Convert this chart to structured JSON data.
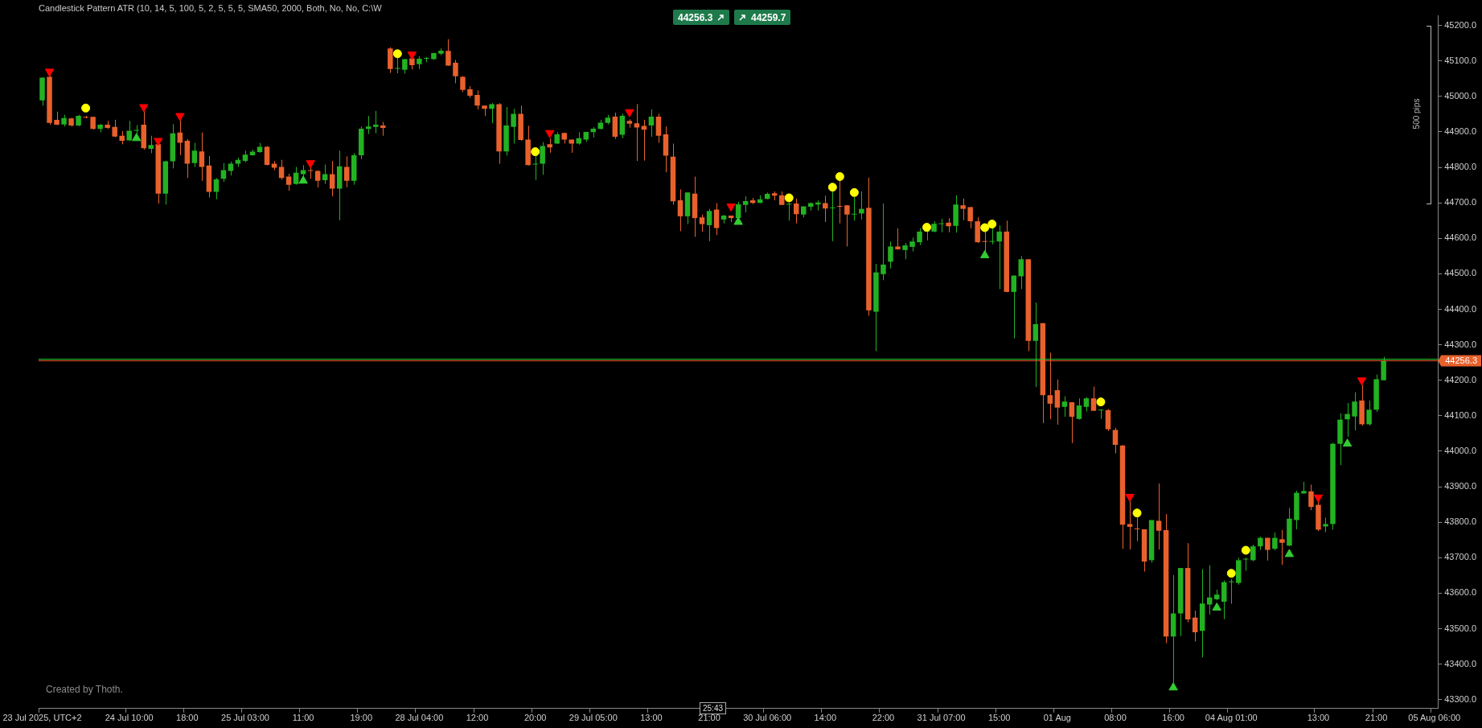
{
  "chart_data": {
    "type": "candlestick",
    "title": "Candlestick Pattern ATR (10, 14, 5, 100, 5, 2, 5, 5, 5, SMA50, 2000, Both, No, No, C:\\W",
    "categories": [
      "23 Jul 2025, UTC+2",
      null,
      null,
      null,
      null,
      null,
      null,
      null,
      null,
      null,
      null,
      null,
      "24 Jul 10:00",
      null,
      null,
      null,
      null,
      null,
      null,
      null,
      "18:00",
      null,
      null,
      null,
      null,
      null,
      null,
      null,
      "25 Jul 03:00",
      null,
      null,
      null,
      null,
      null,
      null,
      null,
      "11:00",
      null,
      null,
      null,
      null,
      null,
      null,
      null,
      "19:00",
      null,
      null,
      null,
      null,
      null,
      null,
      null,
      "28 Jul 04:00",
      null,
      null,
      null,
      null,
      null,
      null,
      null,
      "12:00",
      null,
      null,
      null,
      null,
      null,
      null,
      null,
      "20:00",
      null,
      null,
      null,
      null,
      null,
      null,
      null,
      "29 Jul 05:00",
      null,
      null,
      null,
      null,
      null,
      null,
      null,
      "13:00",
      null,
      null,
      null,
      null,
      null,
      null,
      null,
      "21:00",
      null,
      null,
      null,
      null,
      null,
      null,
      null,
      "30 Jul 06:00",
      null,
      null,
      null,
      null,
      null,
      null,
      null,
      "14:00",
      null,
      null,
      null,
      null,
      null,
      null,
      null,
      "22:00",
      null,
      null,
      null,
      null,
      null,
      null,
      null,
      "31 Jul 07:00",
      null,
      null,
      null,
      null,
      null,
      null,
      null,
      "15:00",
      null,
      null,
      null,
      null,
      null,
      null,
      null,
      "01 Aug",
      null,
      null,
      null,
      null,
      null,
      null,
      null,
      "08:00",
      null,
      null,
      null,
      null,
      null,
      null,
      null,
      "16:00",
      null,
      null,
      null,
      null,
      null,
      null,
      null,
      "04 Aug 01:00",
      null,
      null,
      null,
      null,
      null,
      null,
      null,
      null,
      null,
      null,
      null,
      "13:00",
      null,
      null,
      null,
      null,
      null,
      null,
      null,
      "21:00",
      null,
      null,
      null,
      null,
      null,
      null,
      null,
      "05 Aug 06:00"
    ],
    "ohlc": [
      [
        44989,
        45053,
        44974,
        45053
      ],
      [
        45055,
        45060,
        44920,
        44925
      ],
      [
        44934,
        44957,
        44919,
        44920
      ],
      [
        44921,
        44948,
        44915,
        44939
      ],
      [
        44938,
        44940,
        44915,
        44918
      ],
      [
        44918,
        44948,
        44916,
        44945
      ],
      [
        44941,
        44945,
        44938,
        44940
      ],
      [
        44942,
        44942,
        44906,
        44908
      ],
      [
        44908,
        44922,
        44899,
        44920
      ],
      [
        44920,
        44931,
        44908,
        44911
      ],
      [
        44914,
        44934,
        44885,
        44887
      ],
      [
        44889,
        44902,
        44865,
        44875
      ],
      [
        44876,
        44931,
        44874,
        44903
      ],
      [
        44903,
        44919,
        44895,
        44904
      ],
      [
        44920,
        44959,
        44850,
        44854
      ],
      [
        44852,
        44889,
        44840,
        44863
      ],
      [
        44865,
        44868,
        44698,
        44726
      ],
      [
        44726,
        44819,
        44695,
        44817
      ],
      [
        44817,
        44922,
        44797,
        44896
      ],
      [
        44898,
        44933,
        44834,
        44869
      ],
      [
        44875,
        44880,
        44770,
        44810
      ],
      [
        44812,
        44869,
        44801,
        44847
      ],
      [
        44845,
        44898,
        44762,
        44801
      ],
      [
        44805,
        44832,
        44715,
        44731
      ],
      [
        44731,
        44770,
        44710,
        44766
      ],
      [
        44768,
        44812,
        44759,
        44792
      ],
      [
        44790,
        44816,
        44777,
        44810
      ],
      [
        44810,
        44827,
        44801,
        44821
      ],
      [
        44818,
        44847,
        44814,
        44836
      ],
      [
        44834,
        44850,
        44833,
        44844
      ],
      [
        44843,
        44869,
        44841,
        44858
      ],
      [
        44858,
        44860,
        44805,
        44807
      ],
      [
        44810,
        44818,
        44792,
        44799
      ],
      [
        44801,
        44821,
        44765,
        44770
      ],
      [
        44774,
        44782,
        44734,
        44751
      ],
      [
        44753,
        44801,
        44751,
        44785
      ],
      [
        44781,
        44806,
        44775,
        44792
      ],
      [
        44791,
        44800,
        44768,
        44790
      ],
      [
        44790,
        44792,
        44743,
        44762
      ],
      [
        44764,
        44808,
        44753,
        44781
      ],
      [
        44781,
        44818,
        44718,
        44740
      ],
      [
        44740,
        44847,
        44651,
        44803
      ],
      [
        44801,
        44831,
        44744,
        44762
      ],
      [
        44762,
        44840,
        44751,
        44834
      ],
      [
        44834,
        44915,
        44823,
        44909
      ],
      [
        44908,
        44945,
        44894,
        44915
      ],
      [
        44914,
        44959,
        44896,
        44920
      ],
      [
        44918,
        44928,
        44889,
        44911
      ],
      [
        45135,
        45138,
        45066,
        45077
      ],
      [
        45078,
        45110,
        45065,
        45079
      ],
      [
        45075,
        45105,
        45064,
        45105
      ],
      [
        45107,
        45110,
        45076,
        45088
      ],
      [
        45091,
        45113,
        45077,
        45106
      ],
      [
        45106,
        45111,
        45096,
        45107
      ],
      [
        45105,
        45123,
        45103,
        45122
      ],
      [
        45120,
        45135,
        45116,
        45129
      ],
      [
        45128,
        45161,
        45086,
        45087
      ],
      [
        45095,
        45103,
        45037,
        45057
      ],
      [
        45055,
        45057,
        45012,
        45018
      ],
      [
        45020,
        45029,
        44996,
        45002
      ],
      [
        45004,
        45017,
        44963,
        44974
      ],
      [
        44974,
        44974,
        44945,
        44965
      ],
      [
        44965,
        44981,
        44924,
        44978
      ],
      [
        44978,
        44981,
        44810,
        44845
      ],
      [
        44845,
        44970,
        44833,
        44918
      ],
      [
        44914,
        44965,
        44867,
        44951
      ],
      [
        44951,
        44974,
        44875,
        44877
      ],
      [
        44878,
        44917,
        44805,
        44806
      ],
      [
        44808,
        44838,
        44764,
        44809
      ],
      [
        44810,
        44871,
        44779,
        44860
      ],
      [
        44865,
        44882,
        44841,
        44856
      ],
      [
        44867,
        44899,
        44866,
        44893
      ],
      [
        44897,
        44897,
        44867,
        44878
      ],
      [
        44878,
        44878,
        44841,
        44867
      ],
      [
        44867,
        44899,
        44864,
        44882
      ],
      [
        44878,
        44900,
        44872,
        44900
      ],
      [
        44899,
        44913,
        44884,
        44909
      ],
      [
        44908,
        44934,
        44907,
        44926
      ],
      [
        44925,
        44948,
        44921,
        44940
      ],
      [
        44943,
        44954,
        44880,
        44886
      ],
      [
        44892,
        44951,
        44882,
        44945
      ],
      [
        44931,
        44935,
        44912,
        44923
      ],
      [
        44924,
        44978,
        44818,
        44912
      ],
      [
        44917,
        44934,
        44819,
        44906
      ],
      [
        44918,
        44963,
        44886,
        44943
      ],
      [
        44943,
        44951,
        44869,
        44889
      ],
      [
        44893,
        44915,
        44786,
        44833
      ],
      [
        44830,
        44867,
        44695,
        44704
      ],
      [
        44707,
        44738,
        44620,
        44662
      ],
      [
        44662,
        44729,
        44640,
        44729
      ],
      [
        44726,
        44774,
        44604,
        44657
      ],
      [
        44659,
        44667,
        44619,
        44640
      ],
      [
        44637,
        44683,
        44592,
        44677
      ],
      [
        44681,
        44699,
        44609,
        44629
      ],
      [
        44653,
        44666,
        44642,
        44664
      ],
      [
        44664,
        44664,
        44646,
        44657
      ],
      [
        44657,
        44703,
        44657,
        44696
      ],
      [
        44694,
        44718,
        44673,
        44705
      ],
      [
        44707,
        44714,
        44696,
        44700
      ],
      [
        44700,
        44721,
        44699,
        44710
      ],
      [
        44711,
        44729,
        44710,
        44725
      ],
      [
        44727,
        44732,
        44707,
        44720
      ],
      [
        44721,
        44732,
        44694,
        44694
      ],
      [
        44695,
        44700,
        44650,
        44696
      ],
      [
        44698,
        44712,
        44642,
        44668
      ],
      [
        44667,
        44690,
        44659,
        44690
      ],
      [
        44689,
        44701,
        44678,
        44699
      ],
      [
        44695,
        44707,
        44678,
        44701
      ],
      [
        44699,
        44720,
        44646,
        44684
      ],
      [
        44685,
        44732,
        44592,
        44686
      ],
      [
        44690,
        44764,
        44642,
        44689
      ],
      [
        44693,
        44693,
        44577,
        44667
      ],
      [
        44667,
        44716,
        44650,
        44668
      ],
      [
        44670,
        44732,
        44653,
        44683
      ],
      [
        44686,
        44771,
        44382,
        44397
      ],
      [
        44393,
        44528,
        44282,
        44504
      ],
      [
        44499,
        44698,
        44482,
        44526
      ],
      [
        44534,
        44591,
        44515,
        44577
      ],
      [
        44577,
        44628,
        44568,
        44569
      ],
      [
        44567,
        44587,
        44541,
        44580
      ],
      [
        44576,
        44602,
        44563,
        44591
      ],
      [
        44589,
        44628,
        44581,
        44619
      ],
      [
        44619,
        44621,
        44594,
        44620
      ],
      [
        44619,
        44648,
        44617,
        44641
      ],
      [
        44640,
        44655,
        44617,
        44641
      ],
      [
        44644,
        44657,
        44617,
        44634
      ],
      [
        44635,
        44721,
        44616,
        44695
      ],
      [
        44693,
        44712,
        44651,
        44683
      ],
      [
        44688,
        44688,
        44628,
        44648
      ],
      [
        44648,
        44659,
        44587,
        44589
      ],
      [
        44591,
        44620,
        44561,
        44590
      ],
      [
        44590,
        44631,
        44583,
        44591
      ],
      [
        44591,
        44636,
        44457,
        44619
      ],
      [
        44619,
        44650,
        44448,
        44449
      ],
      [
        44449,
        44495,
        44318,
        44495
      ],
      [
        44493,
        44550,
        44457,
        44541
      ],
      [
        44541,
        44541,
        44282,
        44311
      ],
      [
        44311,
        44419,
        44181,
        44358
      ],
      [
        44361,
        44361,
        44079,
        44158
      ],
      [
        44158,
        44278,
        44090,
        44134
      ],
      [
        44172,
        44202,
        44075,
        44123
      ],
      [
        44125,
        44155,
        44097,
        44140
      ],
      [
        44138,
        44138,
        44023,
        44097
      ],
      [
        44091,
        44149,
        44089,
        44129
      ],
      [
        44125,
        44152,
        44112,
        44149
      ],
      [
        44149,
        44182,
        44114,
        44114
      ],
      [
        44115,
        44118,
        44091,
        44116
      ],
      [
        44116,
        44119,
        44057,
        44062
      ],
      [
        44060,
        44066,
        43994,
        44018
      ],
      [
        44016,
        44018,
        43725,
        43793
      ],
      [
        43795,
        43861,
        43723,
        43787
      ],
      [
        43781,
        43813,
        43747,
        43780
      ],
      [
        43780,
        43780,
        43661,
        43689
      ],
      [
        43693,
        43806,
        43686,
        43806
      ],
      [
        43804,
        43909,
        43723,
        43776
      ],
      [
        43778,
        43823,
        43459,
        43478
      ],
      [
        43478,
        43651,
        43341,
        43543
      ],
      [
        43543,
        43671,
        43479,
        43671
      ],
      [
        43671,
        43741,
        43518,
        43526
      ],
      [
        43531,
        43551,
        43464,
        43490
      ],
      [
        43494,
        43668,
        43419,
        43571
      ],
      [
        43568,
        43679,
        43540,
        43588
      ],
      [
        43583,
        43610,
        43580,
        43596
      ],
      [
        43576,
        43636,
        43527,
        43631
      ],
      [
        43631,
        43640,
        43570,
        43632
      ],
      [
        43629,
        43700,
        43624,
        43693
      ],
      [
        43695,
        43700,
        43663,
        43696
      ],
      [
        43693,
        43737,
        43690,
        43732
      ],
      [
        43732,
        43759,
        43722,
        43756
      ],
      [
        43756,
        43756,
        43692,
        43722
      ],
      [
        43725,
        43771,
        43721,
        43756
      ],
      [
        43752,
        43778,
        43680,
        43742
      ],
      [
        43734,
        43840,
        43733,
        43810
      ],
      [
        43806,
        43889,
        43780,
        43883
      ],
      [
        43881,
        43914,
        43881,
        43888
      ],
      [
        43887,
        43906,
        43834,
        43843
      ],
      [
        43849,
        43859,
        43775,
        43779
      ],
      [
        43788,
        43813,
        43772,
        43795
      ],
      [
        43795,
        44024,
        43779,
        44021
      ],
      [
        44021,
        44107,
        43961,
        44089
      ],
      [
        44090,
        44136,
        44041,
        44105
      ],
      [
        44098,
        44166,
        44059,
        44140
      ],
      [
        44143,
        44187,
        44072,
        44076
      ],
      [
        44076,
        44143,
        44072,
        44117
      ],
      [
        44117,
        44216,
        44111,
        44203
      ],
      [
        44200,
        44266,
        44200,
        44256.3
      ],
      null,
      null,
      null,
      null,
      null,
      null,
      null
    ],
    "colors": [
      "#22b222",
      "#e8612c",
      "#e8612c",
      "#22b222",
      "#e8612c",
      "#22b222",
      "#e8612c",
      "#e8612c",
      "#22b222",
      "#e8612c",
      "#e8612c",
      "#e8612c",
      "#22b222",
      "#22b222",
      "#e8612c",
      "#22b222",
      "#e8612c",
      "#22b222",
      "#22b222",
      "#e8612c",
      "#e8612c",
      "#22b222",
      "#e8612c",
      "#e8612c",
      "#22b222",
      "#22b222",
      "#22b222",
      "#22b222",
      "#22b222",
      "#22b222",
      "#22b222",
      "#e8612c",
      "#e8612c",
      "#e8612c",
      "#e8612c",
      "#22b222",
      "#22b222",
      "#e8612c",
      "#e8612c",
      "#22b222",
      "#e8612c",
      "#22b222",
      "#e8612c",
      "#22b222",
      "#22b222",
      "#22b222",
      "#22b222",
      "#e8612c",
      "#e8612c",
      "#22b222",
      "#22b222",
      "#e8612c",
      "#22b222",
      "#22b222",
      "#22b222",
      "#22b222",
      "#e8612c",
      "#e8612c",
      "#e8612c",
      "#e8612c",
      "#e8612c",
      "#e8612c",
      "#22b222",
      "#e8612c",
      "#22b222",
      "#22b222",
      "#e8612c",
      "#e8612c",
      "#22b222",
      "#22b222",
      "#e8612c",
      "#22b222",
      "#e8612c",
      "#e8612c",
      "#22b222",
      "#22b222",
      "#22b222",
      "#22b222",
      "#22b222",
      "#e8612c",
      "#22b222",
      "#e8612c",
      "#e8612c",
      "#e8612c",
      "#22b222",
      "#e8612c",
      "#e8612c",
      "#e8612c",
      "#e8612c",
      "#22b222",
      "#e8612c",
      "#e8612c",
      "#22b222",
      "#e8612c",
      "#22b222",
      "#e8612c",
      "#22b222",
      "#22b222",
      "#e8612c",
      "#22b222",
      "#22b222",
      "#e8612c",
      "#e8612c",
      "#22b222",
      "#e8612c",
      "#22b222",
      "#22b222",
      "#22b222",
      "#e8612c",
      "#22b222",
      "#e8612c",
      "#e8612c",
      "#22b222",
      "#22b222",
      "#e8612c",
      "#22b222",
      "#22b222",
      "#22b222",
      "#e8612c",
      "#22b222",
      "#22b222",
      "#22b222",
      "#22b222",
      "#22b222",
      "#22b222",
      "#e8612c",
      "#22b222",
      "#e8612c",
      "#e8612c",
      "#e8612c",
      "#e8612c",
      "#22b222",
      "#22b222",
      "#e8612c",
      "#22b222",
      "#22b222",
      "#e8612c",
      "#22b222",
      "#e8612c",
      "#e8612c",
      "#e8612c",
      "#22b222",
      "#e8612c",
      "#22b222",
      "#22b222",
      "#e8612c",
      "#22b222",
      "#e8612c",
      "#e8612c",
      "#e8612c",
      "#e8612c",
      "#e8612c",
      "#e8612c",
      "#22b222",
      "#e8612c",
      "#e8612c",
      "#22b222",
      "#22b222",
      "#e8612c",
      "#e8612c",
      "#22b222",
      "#22b222",
      "#22b222",
      "#22b222",
      "#22b222",
      "#22b222",
      "#22b222",
      "#22b222",
      "#22b222",
      "#e8612c",
      "#22b222",
      "#e8612c",
      "#22b222",
      "#22b222",
      "#22b222",
      "#e8612c",
      "#e8612c",
      "#22b222",
      "#22b222",
      "#22b222",
      "#22b222",
      "#22b222",
      "#e8612c",
      "#22b222",
      "#22b222",
      "#22b222",
      null,
      null,
      null,
      null,
      null,
      null,
      null
    ],
    "series": [
      {
        "type": "scatter",
        "marker": "triangle",
        "color": "#ff0000",
        "values": [
          null,
          45070,
          null,
          null,
          null,
          null,
          null,
          null,
          null,
          null,
          null,
          null,
          null,
          null,
          44970,
          null,
          44875,
          null,
          null,
          44945,
          null,
          null,
          null,
          null,
          null,
          null,
          null,
          null,
          null,
          null,
          null,
          null,
          null,
          null,
          null,
          null,
          null,
          44812,
          null,
          null,
          null,
          null,
          null,
          null,
          null,
          null,
          null,
          null,
          null,
          null,
          null,
          45118,
          null,
          null,
          null,
          null,
          null,
          null,
          null,
          null,
          null,
          null,
          null,
          null,
          null,
          null,
          null,
          null,
          null,
          null,
          44897,
          null,
          null,
          null,
          null,
          null,
          null,
          null,
          null,
          null,
          null,
          44956,
          null,
          null,
          null,
          null,
          null,
          null,
          null,
          null,
          null,
          null,
          null,
          null,
          null,
          44690,
          null,
          null,
          null,
          null,
          null,
          null,
          null,
          null,
          null,
          null,
          null,
          null,
          null,
          null,
          null,
          null,
          null,
          null,
          null,
          null,
          null,
          null,
          null,
          null,
          null,
          null,
          null,
          null,
          null,
          null,
          null,
          null,
          null,
          null,
          null,
          null,
          null,
          null,
          null,
          null,
          null,
          null,
          null,
          null,
          null,
          null,
          null,
          null,
          null,
          null,
          null,
          null,
          null,
          null,
          43872,
          null,
          null,
          null,
          null,
          null,
          null,
          null,
          null,
          null,
          null,
          null,
          null,
          null,
          null,
          null,
          null,
          null,
          null,
          null,
          null,
          null,
          null,
          null,
          null,
          null,
          43870,
          null,
          null,
          null,
          null,
          null,
          44200,
          null,
          null,
          null,
          null,
          null,
          null,
          null,
          null,
          null,
          null
        ]
      },
      {
        "type": "scatter",
        "marker": "triangle",
        "color": "#33cc33",
        "values": [
          null,
          null,
          null,
          null,
          null,
          null,
          null,
          null,
          null,
          null,
          null,
          null,
          null,
          44882,
          null,
          null,
          null,
          null,
          null,
          null,
          null,
          null,
          null,
          null,
          null,
          null,
          null,
          null,
          null,
          null,
          null,
          null,
          null,
          null,
          null,
          null,
          44762,
          null,
          null,
          null,
          null,
          null,
          null,
          null,
          null,
          null,
          null,
          null,
          null,
          null,
          null,
          null,
          null,
          null,
          null,
          null,
          null,
          null,
          null,
          null,
          null,
          null,
          null,
          null,
          null,
          null,
          null,
          null,
          null,
          null,
          null,
          null,
          null,
          null,
          null,
          null,
          null,
          null,
          null,
          null,
          null,
          null,
          null,
          null,
          null,
          null,
          null,
          null,
          null,
          null,
          null,
          null,
          null,
          null,
          null,
          null,
          44646,
          null,
          null,
          null,
          null,
          null,
          null,
          null,
          null,
          null,
          null,
          null,
          null,
          null,
          null,
          null,
          null,
          null,
          null,
          null,
          null,
          null,
          null,
          null,
          null,
          null,
          null,
          null,
          null,
          null,
          null,
          null,
          null,
          null,
          44552,
          null,
          null,
          null,
          null,
          null,
          null,
          null,
          null,
          null,
          null,
          null,
          null,
          null,
          null,
          null,
          null,
          null,
          null,
          null,
          null,
          null,
          null,
          null,
          null,
          null,
          43334,
          null,
          null,
          null,
          null,
          null,
          43559,
          null,
          null,
          null,
          null,
          null,
          null,
          null,
          null,
          null,
          43710,
          null,
          null,
          null,
          null,
          null,
          null,
          null,
          44021,
          null,
          null,
          null,
          null,
          null,
          null,
          null,
          null,
          null,
          null,
          null,
          null
        ]
      },
      {
        "type": "scatter",
        "marker": "circle",
        "color": "#ffff00",
        "values": [
          null,
          null,
          null,
          null,
          null,
          null,
          44967,
          null,
          null,
          null,
          null,
          null,
          null,
          null,
          null,
          null,
          null,
          null,
          null,
          null,
          null,
          null,
          null,
          null,
          null,
          null,
          null,
          null,
          null,
          null,
          null,
          null,
          null,
          null,
          null,
          null,
          null,
          null,
          null,
          null,
          null,
          null,
          null,
          null,
          null,
          null,
          null,
          null,
          null,
          45120,
          null,
          null,
          null,
          null,
          null,
          null,
          null,
          null,
          null,
          null,
          null,
          null,
          null,
          null,
          null,
          null,
          null,
          null,
          44844,
          null,
          null,
          null,
          null,
          null,
          null,
          null,
          null,
          null,
          null,
          null,
          null,
          null,
          null,
          null,
          null,
          null,
          null,
          null,
          null,
          null,
          null,
          null,
          null,
          null,
          null,
          null,
          null,
          null,
          null,
          null,
          null,
          null,
          null,
          44714,
          null,
          null,
          null,
          null,
          null,
          44744,
          44774,
          null,
          44729,
          null,
          null,
          null,
          null,
          null,
          null,
          null,
          null,
          null,
          44631,
          null,
          null,
          null,
          null,
          null,
          null,
          null,
          44630,
          44640,
          null,
          null,
          null,
          null,
          null,
          null,
          null,
          null,
          null,
          null,
          null,
          null,
          null,
          null,
          44139,
          null,
          null,
          null,
          null,
          43826,
          null,
          null,
          null,
          null,
          null,
          null,
          null,
          null,
          null,
          null,
          null,
          null,
          43656,
          null,
          43721,
          null,
          null,
          null,
          null,
          null,
          null,
          null,
          null,
          null,
          null,
          null,
          null,
          null,
          null,
          null,
          null,
          null,
          null,
          null,
          null,
          null,
          null,
          null,
          null,
          null,
          null
        ]
      }
    ],
    "ylim": [
      43275,
      45228
    ],
    "yticks": [
      {
        "value": 43300,
        "label": "43300.0"
      },
      {
        "value": 43400,
        "label": "43400.0"
      },
      {
        "value": 43500,
        "label": "43500.0"
      },
      {
        "value": 43600,
        "label": "43600.0"
      },
      {
        "value": 43700,
        "label": "43700.0"
      },
      {
        "value": 43800,
        "label": "43800.0"
      },
      {
        "value": 43900,
        "label": "43900.0"
      },
      {
        "value": 44000,
        "label": "44000.0"
      },
      {
        "value": 44100,
        "label": "44100.0"
      },
      {
        "value": 44200,
        "label": "44200.0"
      },
      {
        "value": 44300,
        "label": "44300.0"
      },
      {
        "value": 44400,
        "label": "44400.0"
      },
      {
        "value": 44500,
        "label": "44500.0"
      },
      {
        "value": 44600,
        "label": "44600.0"
      },
      {
        "value": 44700,
        "label": "44700.0"
      },
      {
        "value": 44800,
        "label": "44800.0"
      },
      {
        "value": 44900,
        "label": "44900.0"
      },
      {
        "value": 45000,
        "label": "45000.0"
      },
      {
        "value": 45100,
        "label": "45100.0"
      },
      {
        "value": 45200,
        "label": "45200.0"
      }
    ],
    "ref_lines": [
      {
        "axis": "y",
        "value": 44259.7,
        "label": null,
        "color": "#33cc33"
      },
      {
        "axis": "y",
        "value": 44256.3,
        "label": "44256.3",
        "color": "#e8612c"
      }
    ],
    "annotations": [
      "44256.3",
      "44259.7",
      "500 pips",
      "25:43",
      "Created by Thoth."
    ]
  }
}
